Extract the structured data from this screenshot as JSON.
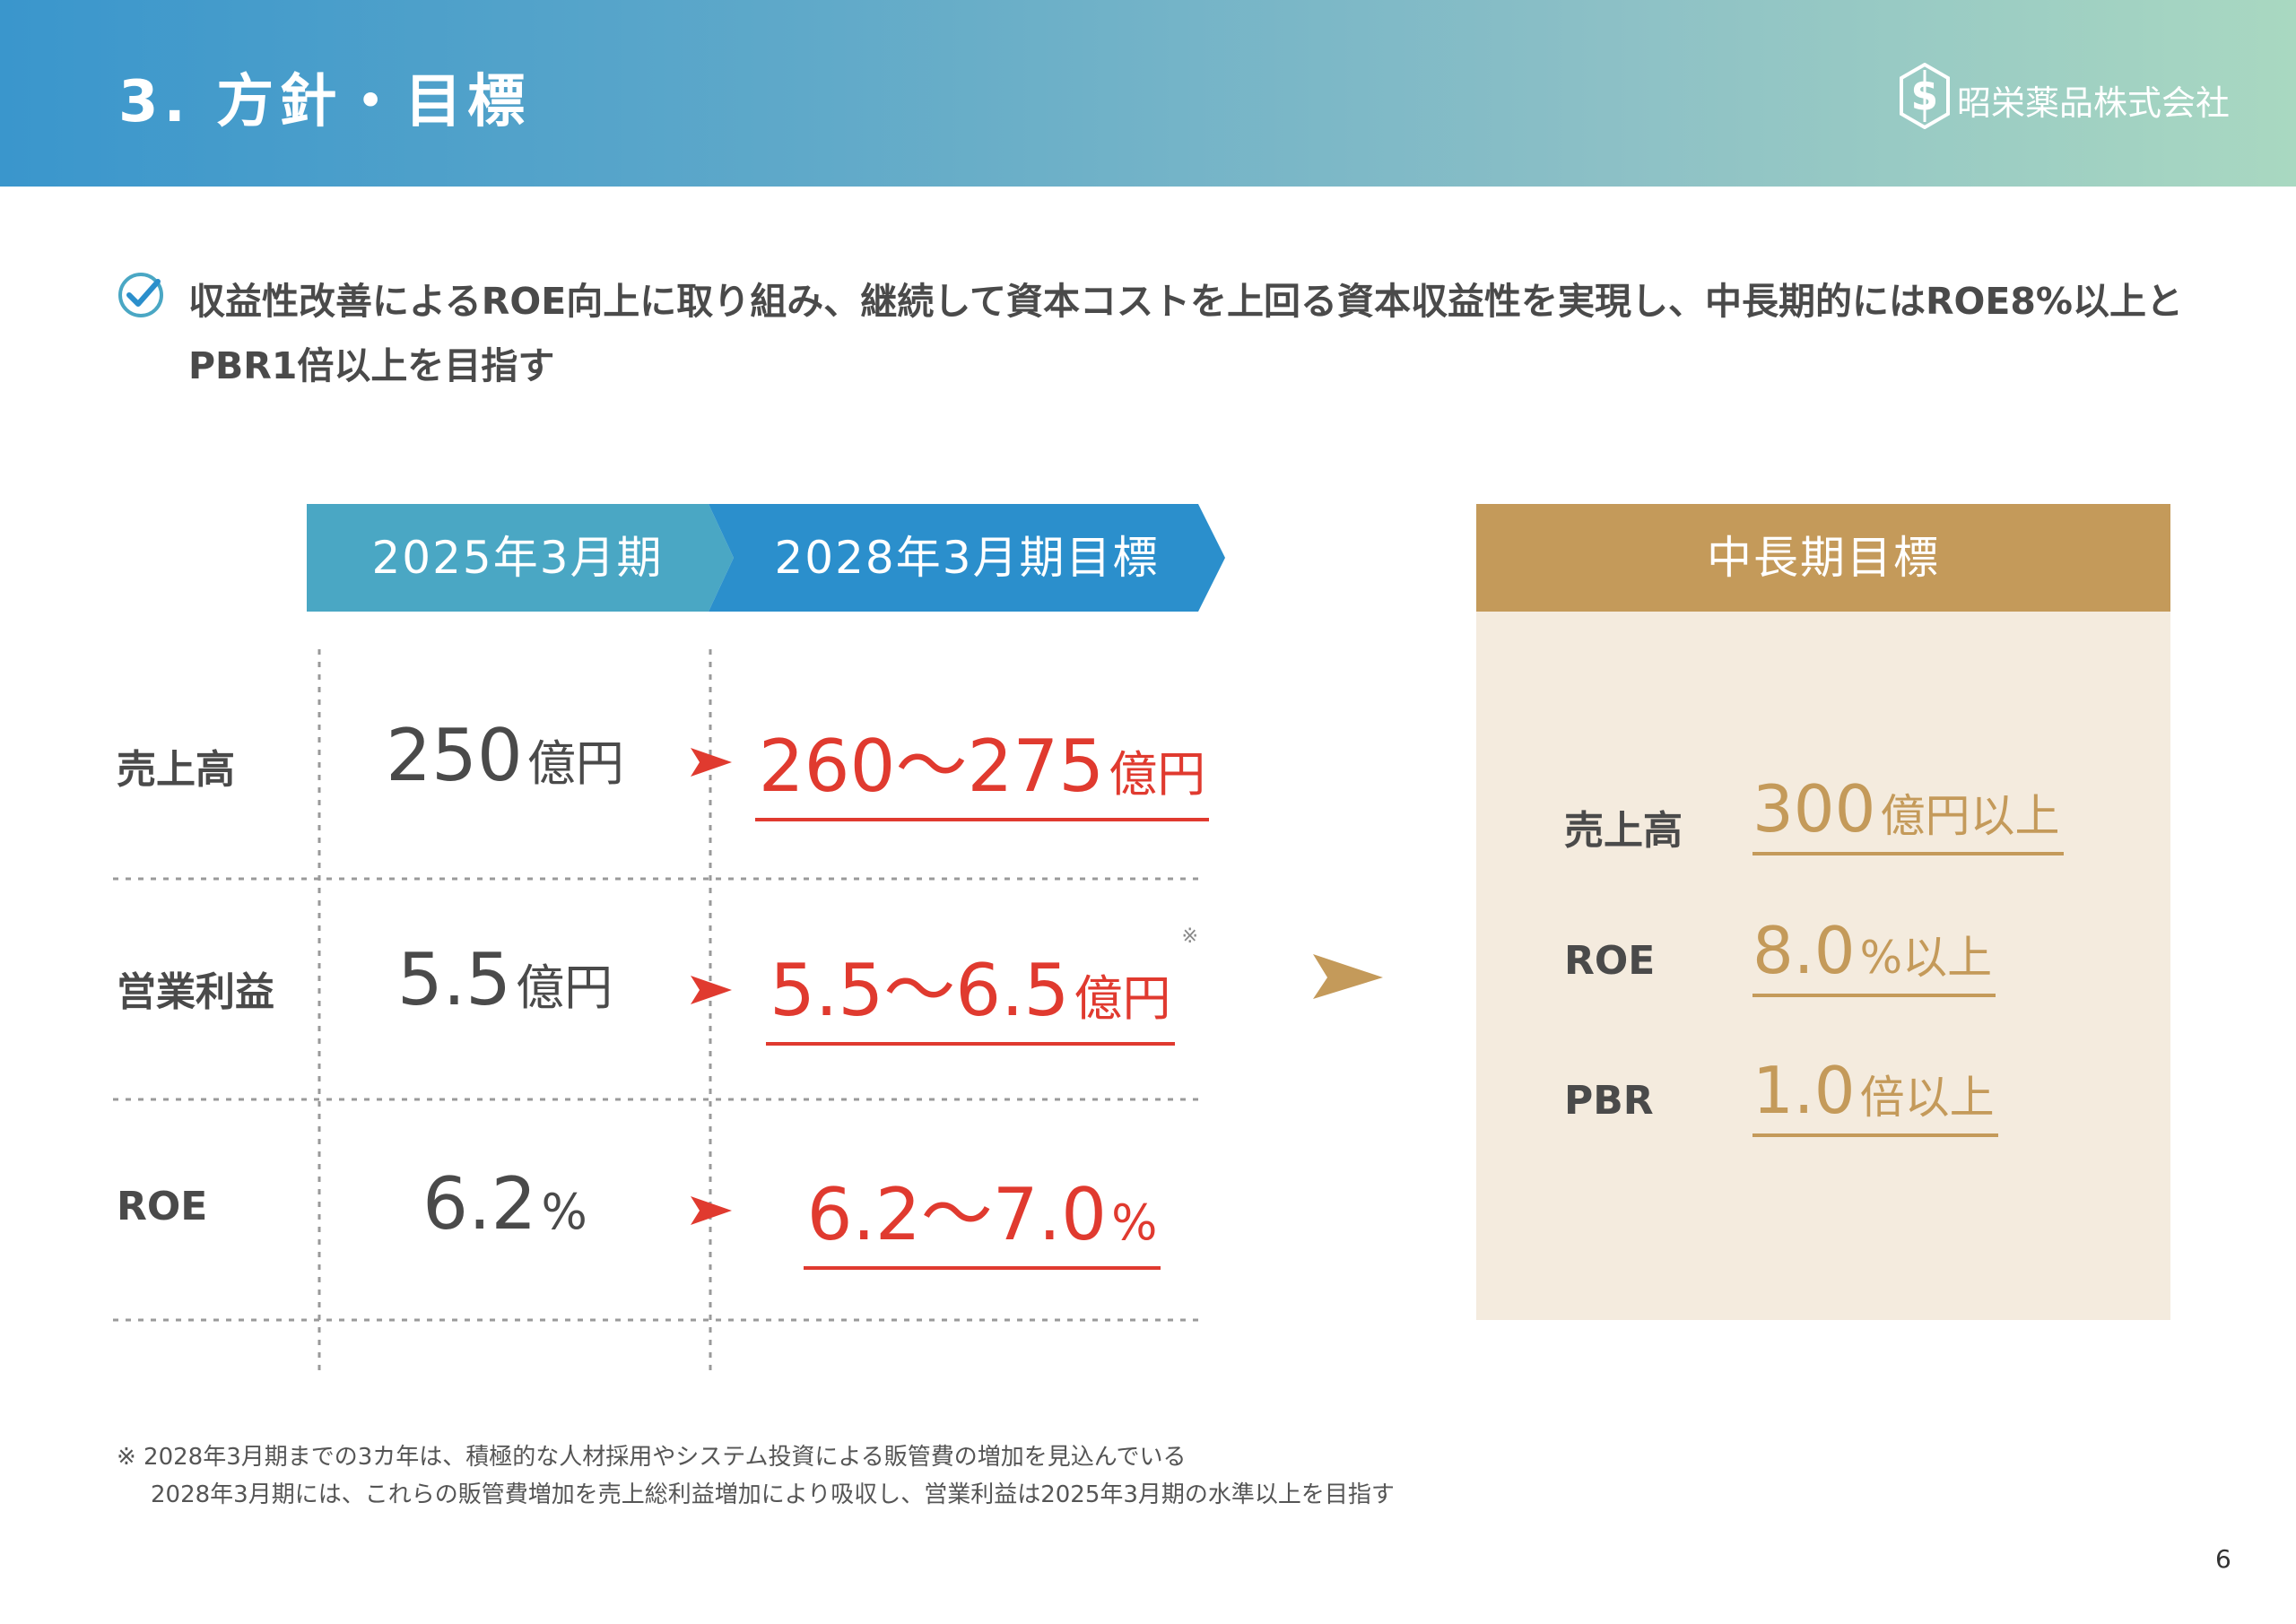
{
  "header": {
    "title": "3. 方針・目標",
    "company": "昭栄薬品株式会社",
    "logo_icon": "company-logo-icon"
  },
  "lead": {
    "icon": "check-circle-icon",
    "text": "収益性改善によるROE向上に取り組み、継続して資本コストを上回る資本収益性を実現し、中長期的にはROE8%以上とPBR1倍以上を目指す"
  },
  "table": {
    "col_current": "2025年3月期",
    "col_target": "2028年3月期目標",
    "rows": [
      {
        "label": "売上高",
        "current_value": "250",
        "current_unit": "億円",
        "target_value": "260～275",
        "target_unit": "億円",
        "note": ""
      },
      {
        "label": "営業利益",
        "current_value": "5.5",
        "current_unit": "億円",
        "target_value": "5.5～6.5",
        "target_unit": "億円",
        "note": "※"
      },
      {
        "label": "ROE",
        "current_value": "6.2",
        "current_unit": "%",
        "target_value": "6.2～7.0",
        "target_unit": "%",
        "note": ""
      }
    ]
  },
  "midterm": {
    "title": "中長期目標",
    "rows": [
      {
        "label": "売上高",
        "value": "300",
        "unit": "億円以上"
      },
      {
        "label": "ROE",
        "value": "8.0",
        "unit": "%以上"
      },
      {
        "label": "PBR",
        "value": "1.0",
        "unit": "倍以上"
      }
    ]
  },
  "footnote": {
    "line1": "※ 2028年3月期までの3カ年は、積極的な人材採用やシステム投資による販管費の増加を見込んでいる",
    "line2": "2028年3月期には、これらの販管費増加を売上総利益増加により吸収し、営業利益は2025年3月期の水準以上を目指す"
  },
  "page_number": "6",
  "colors": {
    "accent_blue": "#2b8fcc",
    "accent_teal": "#4aa7c4",
    "target_red": "#e03a2f",
    "gold": "#c49a5a",
    "gold_bg": "#f4ebde"
  }
}
